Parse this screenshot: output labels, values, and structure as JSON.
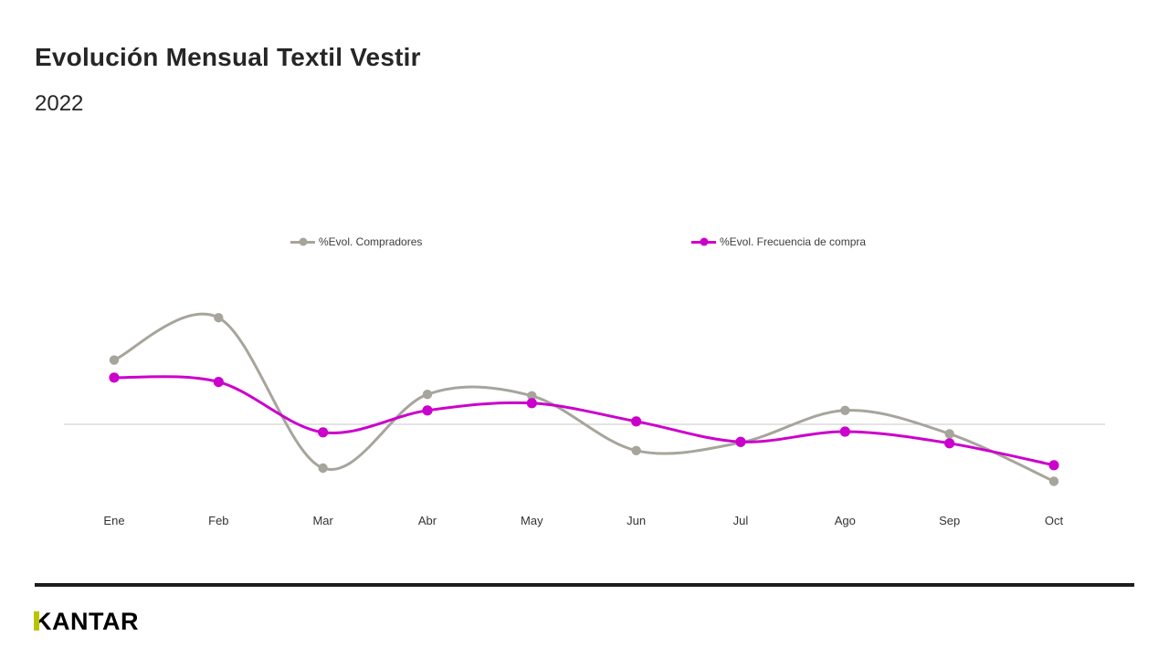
{
  "header": {
    "title": "Evolución Mensual Textil Vestir",
    "subtitle": "2022"
  },
  "chart_data": {
    "type": "line",
    "title": "Evolución Mensual Textil Vestir 2022",
    "categories": [
      "Ene",
      "Feb",
      "Mar",
      "Abr",
      "May",
      "Jun",
      "Jul",
      "Ago",
      "Sep",
      "Oct"
    ],
    "series": [
      {
        "name": "%Evol. Compradores",
        "color": "#a7a59b",
        "values": [
          8.8,
          14.6,
          -6.0,
          4.1,
          3.9,
          -3.6,
          -2.5,
          1.9,
          -1.3,
          -7.8
        ]
      },
      {
        "name": "%Evol. Frecuencia de compra",
        "color": "#cc00cc",
        "values": [
          6.4,
          5.8,
          -1.1,
          1.9,
          2.9,
          0.4,
          -2.4,
          -1.0,
          -2.6,
          -5.6
        ]
      }
    ],
    "xlabel": "",
    "ylabel": "",
    "ylim": [
      -15,
      20
    ],
    "baseline": 0,
    "grid": false,
    "smooth": true,
    "legend_position": "top"
  },
  "colors": {
    "baseline_line": "#c9c9c9",
    "footer_bar": "#1d1d1d",
    "logo_accent": "#b9c400",
    "title_text": "#262626"
  },
  "footer": {
    "logo_text": "KANTAR"
  }
}
